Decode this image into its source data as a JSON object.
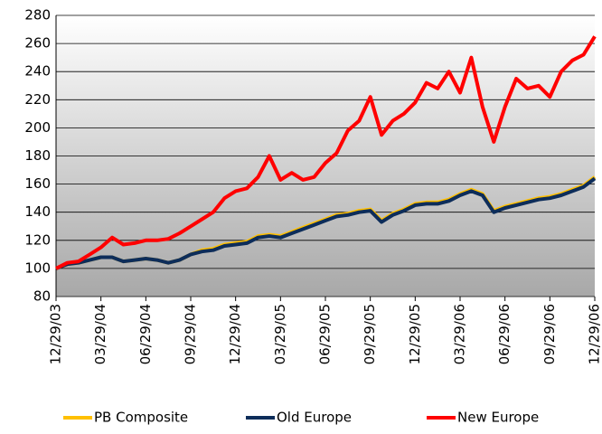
{
  "chart_data": {
    "type": "line",
    "categories": [
      "12/29/03",
      null,
      null,
      null,
      "03/29/04",
      null,
      null,
      null,
      "06/29/04",
      null,
      null,
      null,
      "09/29/04",
      null,
      null,
      null,
      "12/29/04",
      null,
      null,
      null,
      "03/29/05",
      null,
      null,
      null,
      "06/29/05",
      null,
      null,
      null,
      "09/29/05",
      null,
      null,
      null,
      "12/29/05",
      null,
      null,
      null,
      "03/29/06",
      null,
      null,
      null,
      "06/29/06",
      null,
      null,
      null,
      "09/29/06",
      null,
      null,
      null,
      "12/29/06"
    ],
    "series": [
      {
        "name": "PB Composite",
        "color": "#ffc000",
        "values": [
          100,
          103,
          104,
          106,
          108,
          108,
          105,
          106,
          107,
          106,
          104,
          106,
          110,
          113,
          114,
          117,
          118,
          119,
          123,
          124,
          123,
          126,
          129,
          132,
          135,
          138,
          139,
          141,
          142,
          134,
          139,
          142,
          146,
          147,
          147,
          149,
          153,
          156,
          153,
          141,
          144,
          146,
          148,
          150,
          151,
          153,
          156,
          159,
          165
        ]
      },
      {
        "name": "Old Europe",
        "color": "#0d2d5a",
        "values": [
          100,
          103,
          104,
          106,
          108,
          108,
          105,
          106,
          107,
          106,
          104,
          106,
          110,
          112,
          113,
          116,
          117,
          118,
          122,
          123,
          122,
          125,
          128,
          131,
          134,
          137,
          138,
          140,
          141,
          133,
          138,
          141,
          145,
          146,
          146,
          148,
          152,
          155,
          152,
          140,
          143,
          145,
          147,
          149,
          150,
          152,
          155,
          158,
          164
        ]
      },
      {
        "name": "New Europe",
        "color": "#ff0000",
        "values": [
          100,
          104,
          105,
          110,
          115,
          122,
          117,
          118,
          120,
          120,
          121,
          125,
          130,
          135,
          140,
          150,
          155,
          157,
          165,
          180,
          163,
          168,
          163,
          165,
          175,
          182,
          198,
          205,
          222,
          195,
          205,
          210,
          218,
          232,
          228,
          240,
          225,
          250,
          215,
          190,
          215,
          235,
          228,
          230,
          222,
          240,
          248,
          252,
          265
        ]
      }
    ],
    "ylim": [
      80,
      280
    ],
    "yticks": [
      80,
      100,
      120,
      140,
      160,
      180,
      200,
      220,
      240,
      260,
      280
    ],
    "grid": true,
    "legend": "bottom"
  }
}
